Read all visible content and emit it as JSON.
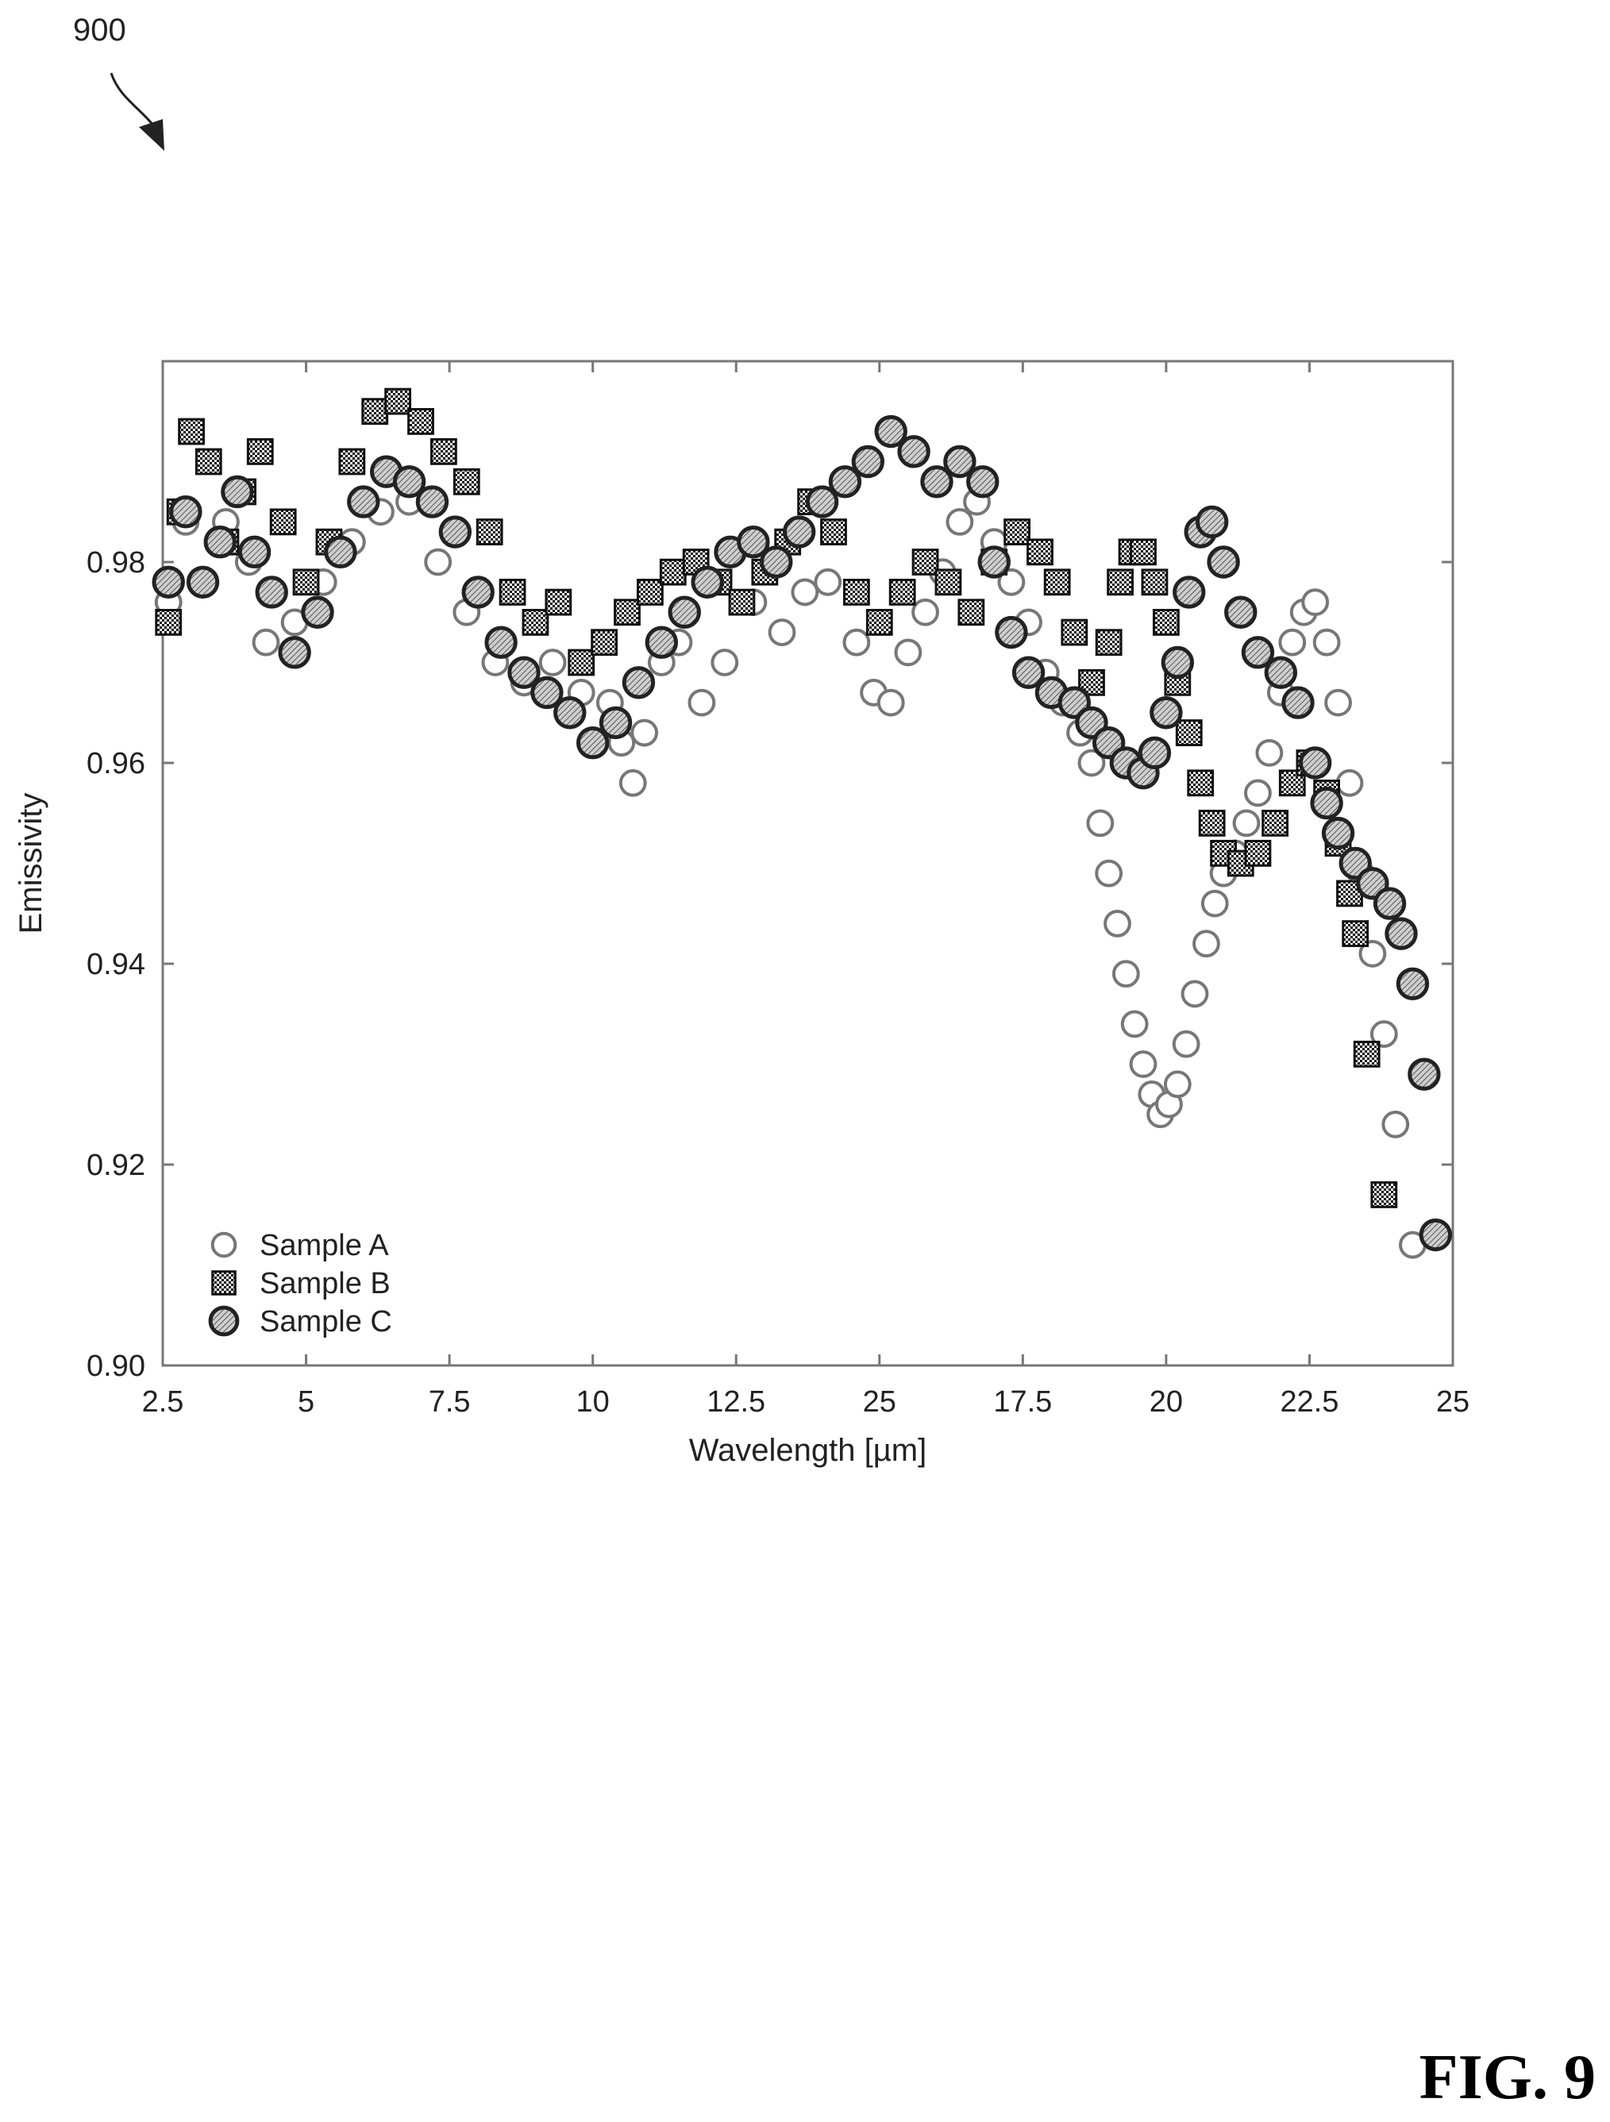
{
  "figure": {
    "reference_numeral": "900",
    "label": "FIG. 9"
  },
  "chart_data": {
    "type": "scatter",
    "xlabel": "Wavelength [µm]",
    "ylabel": "Emissivity",
    "x_tick_labels": [
      "2.5",
      "5",
      "7.5",
      "10",
      "12.5",
      "25",
      "17.5",
      "20",
      "22.5",
      "25"
    ],
    "y_tick_labels": [
      "0.90",
      "0.92",
      "0.94",
      "0.96",
      "0.98"
    ],
    "xlim": [
      2.5,
      25
    ],
    "ylim": [
      0.9,
      1.0
    ],
    "y_ticks": [
      0.9,
      0.92,
      0.94,
      0.96,
      0.98
    ],
    "legend_position": "bottom-left",
    "grid": false,
    "series": [
      {
        "name": "Sample A",
        "marker": "open-circle",
        "points": [
          [
            2.6,
            0.976
          ],
          [
            2.9,
            0.984
          ],
          [
            3.2,
            0.978
          ],
          [
            3.6,
            0.984
          ],
          [
            4.0,
            0.98
          ],
          [
            4.3,
            0.972
          ],
          [
            4.8,
            0.974
          ],
          [
            5.3,
            0.978
          ],
          [
            5.8,
            0.982
          ],
          [
            6.3,
            0.985
          ],
          [
            6.8,
            0.986
          ],
          [
            7.3,
            0.98
          ],
          [
            7.8,
            0.975
          ],
          [
            8.3,
            0.97
          ],
          [
            8.8,
            0.968
          ],
          [
            9.3,
            0.97
          ],
          [
            9.8,
            0.967
          ],
          [
            10.3,
            0.966
          ],
          [
            10.5,
            0.962
          ],
          [
            10.7,
            0.958
          ],
          [
            10.9,
            0.963
          ],
          [
            11.2,
            0.97
          ],
          [
            11.5,
            0.972
          ],
          [
            11.9,
            0.966
          ],
          [
            12.3,
            0.97
          ],
          [
            12.8,
            0.976
          ],
          [
            13.3,
            0.973
          ],
          [
            13.7,
            0.977
          ],
          [
            14.1,
            0.978
          ],
          [
            14.6,
            0.972
          ],
          [
            14.9,
            0.967
          ],
          [
            15.2,
            0.966
          ],
          [
            15.5,
            0.971
          ],
          [
            15.8,
            0.975
          ],
          [
            16.1,
            0.979
          ],
          [
            16.4,
            0.984
          ],
          [
            16.7,
            0.986
          ],
          [
            17.0,
            0.982
          ],
          [
            17.3,
            0.978
          ],
          [
            17.6,
            0.974
          ],
          [
            17.9,
            0.969
          ],
          [
            18.2,
            0.966
          ],
          [
            18.5,
            0.963
          ],
          [
            18.7,
            0.96
          ],
          [
            18.85,
            0.954
          ],
          [
            19.0,
            0.949
          ],
          [
            19.15,
            0.944
          ],
          [
            19.3,
            0.939
          ],
          [
            19.45,
            0.934
          ],
          [
            19.6,
            0.93
          ],
          [
            19.75,
            0.927
          ],
          [
            19.9,
            0.925
          ],
          [
            20.05,
            0.926
          ],
          [
            20.2,
            0.928
          ],
          [
            20.35,
            0.932
          ],
          [
            20.5,
            0.937
          ],
          [
            20.7,
            0.942
          ],
          [
            20.85,
            0.946
          ],
          [
            21.0,
            0.949
          ],
          [
            21.2,
            0.951
          ],
          [
            21.4,
            0.954
          ],
          [
            21.6,
            0.957
          ],
          [
            21.8,
            0.961
          ],
          [
            22.0,
            0.967
          ],
          [
            22.2,
            0.972
          ],
          [
            22.4,
            0.975
          ],
          [
            22.6,
            0.976
          ],
          [
            22.8,
            0.972
          ],
          [
            23.0,
            0.966
          ],
          [
            23.2,
            0.958
          ],
          [
            23.4,
            0.949
          ],
          [
            23.6,
            0.941
          ],
          [
            23.8,
            0.933
          ],
          [
            24.0,
            0.924
          ],
          [
            24.3,
            0.912
          ]
        ]
      },
      {
        "name": "Sample B",
        "marker": "checkered-square",
        "points": [
          [
            2.6,
            0.974
          ],
          [
            2.8,
            0.985
          ],
          [
            3.0,
            0.993
          ],
          [
            3.3,
            0.99
          ],
          [
            3.6,
            0.982
          ],
          [
            3.9,
            0.987
          ],
          [
            4.2,
            0.991
          ],
          [
            4.6,
            0.984
          ],
          [
            5.0,
            0.978
          ],
          [
            5.4,
            0.982
          ],
          [
            5.8,
            0.99
          ],
          [
            6.2,
            0.995
          ],
          [
            6.6,
            0.996
          ],
          [
            7.0,
            0.994
          ],
          [
            7.4,
            0.991
          ],
          [
            7.8,
            0.988
          ],
          [
            8.2,
            0.983
          ],
          [
            8.6,
            0.977
          ],
          [
            9.0,
            0.974
          ],
          [
            9.4,
            0.976
          ],
          [
            9.8,
            0.97
          ],
          [
            10.2,
            0.972
          ],
          [
            10.6,
            0.975
          ],
          [
            11.0,
            0.977
          ],
          [
            11.4,
            0.979
          ],
          [
            11.8,
            0.98
          ],
          [
            12.2,
            0.978
          ],
          [
            12.6,
            0.976
          ],
          [
            13.0,
            0.979
          ],
          [
            13.4,
            0.982
          ],
          [
            13.8,
            0.986
          ],
          [
            14.2,
            0.983
          ],
          [
            14.6,
            0.977
          ],
          [
            15.0,
            0.974
          ],
          [
            15.4,
            0.977
          ],
          [
            15.8,
            0.98
          ],
          [
            16.2,
            0.978
          ],
          [
            16.6,
            0.975
          ],
          [
            17.0,
            0.98
          ],
          [
            17.4,
            0.983
          ],
          [
            17.8,
            0.981
          ],
          [
            18.1,
            0.978
          ],
          [
            18.4,
            0.973
          ],
          [
            18.7,
            0.968
          ],
          [
            19.0,
            0.972
          ],
          [
            19.2,
            0.978
          ],
          [
            19.4,
            0.981
          ],
          [
            19.6,
            0.981
          ],
          [
            19.8,
            0.978
          ],
          [
            20.0,
            0.974
          ],
          [
            20.2,
            0.968
          ],
          [
            20.4,
            0.963
          ],
          [
            20.6,
            0.958
          ],
          [
            20.8,
            0.954
          ],
          [
            21.0,
            0.951
          ],
          [
            21.3,
            0.95
          ],
          [
            21.6,
            0.951
          ],
          [
            21.9,
            0.954
          ],
          [
            22.2,
            0.958
          ],
          [
            22.5,
            0.96
          ],
          [
            22.8,
            0.957
          ],
          [
            23.0,
            0.952
          ],
          [
            23.2,
            0.947
          ],
          [
            23.3,
            0.943
          ],
          [
            23.5,
            0.931
          ],
          [
            23.8,
            0.917
          ]
        ]
      },
      {
        "name": "Sample C",
        "marker": "hatched-diamond",
        "points": [
          [
            2.6,
            0.978
          ],
          [
            2.9,
            0.985
          ],
          [
            3.2,
            0.978
          ],
          [
            3.5,
            0.982
          ],
          [
            3.8,
            0.987
          ],
          [
            4.1,
            0.981
          ],
          [
            4.4,
            0.977
          ],
          [
            4.8,
            0.971
          ],
          [
            5.2,
            0.975
          ],
          [
            5.6,
            0.981
          ],
          [
            6.0,
            0.986
          ],
          [
            6.4,
            0.989
          ],
          [
            6.8,
            0.988
          ],
          [
            7.2,
            0.986
          ],
          [
            7.6,
            0.983
          ],
          [
            8.0,
            0.977
          ],
          [
            8.4,
            0.972
          ],
          [
            8.8,
            0.969
          ],
          [
            9.2,
            0.967
          ],
          [
            9.6,
            0.965
          ],
          [
            10.0,
            0.962
          ],
          [
            10.4,
            0.964
          ],
          [
            10.8,
            0.968
          ],
          [
            11.2,
            0.972
          ],
          [
            11.6,
            0.975
          ],
          [
            12.0,
            0.978
          ],
          [
            12.4,
            0.981
          ],
          [
            12.8,
            0.982
          ],
          [
            13.2,
            0.98
          ],
          [
            13.6,
            0.983
          ],
          [
            14.0,
            0.986
          ],
          [
            14.4,
            0.988
          ],
          [
            14.8,
            0.99
          ],
          [
            15.2,
            0.993
          ],
          [
            15.6,
            0.991
          ],
          [
            16.0,
            0.988
          ],
          [
            16.4,
            0.99
          ],
          [
            16.8,
            0.988
          ],
          [
            17.0,
            0.98
          ],
          [
            17.3,
            0.973
          ],
          [
            17.6,
            0.969
          ],
          [
            18.0,
            0.967
          ],
          [
            18.4,
            0.966
          ],
          [
            18.7,
            0.964
          ],
          [
            19.0,
            0.962
          ],
          [
            19.3,
            0.96
          ],
          [
            19.6,
            0.959
          ],
          [
            19.8,
            0.961
          ],
          [
            20.0,
            0.965
          ],
          [
            20.2,
            0.97
          ],
          [
            20.4,
            0.977
          ],
          [
            20.6,
            0.983
          ],
          [
            20.8,
            0.984
          ],
          [
            21.0,
            0.98
          ],
          [
            21.3,
            0.975
          ],
          [
            21.6,
            0.971
          ],
          [
            22.0,
            0.969
          ],
          [
            22.3,
            0.966
          ],
          [
            22.6,
            0.96
          ],
          [
            22.8,
            0.956
          ],
          [
            23.0,
            0.953
          ],
          [
            23.3,
            0.95
          ],
          [
            23.6,
            0.948
          ],
          [
            23.9,
            0.946
          ],
          [
            24.1,
            0.943
          ],
          [
            24.3,
            0.938
          ],
          [
            24.5,
            0.929
          ],
          [
            24.7,
            0.913
          ]
        ]
      }
    ]
  }
}
